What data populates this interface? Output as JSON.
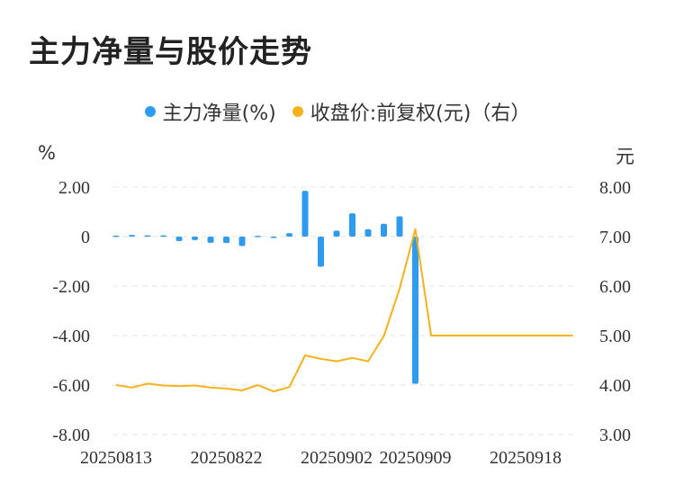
{
  "chart_data": {
    "type": "bar+line",
    "title": "主力净量与股价走势",
    "legend": [
      {
        "label": "主力净量(%)",
        "color": "#2e9bef",
        "placement": "top-center"
      },
      {
        "label": "收盘价:前复权(元)（右）",
        "color": "#f5b21b",
        "placement": "top-center"
      }
    ],
    "left_unit": "%",
    "right_unit": "元",
    "left_ylim": [
      -8,
      2
    ],
    "right_ylim": [
      3,
      8
    ],
    "left_ticks": [
      "2.00",
      "0",
      "-2.00",
      "-4.00",
      "-6.00",
      "-8.00"
    ],
    "right_ticks": [
      "8.00",
      "7.00",
      "6.00",
      "5.00",
      "4.00",
      "3.00"
    ],
    "x_tick_labels": [
      {
        "label": "20250813",
        "index": 0
      },
      {
        "label": "20250822",
        "index": 7
      },
      {
        "label": "20250902",
        "index": 14
      },
      {
        "label": "20250909",
        "index": 19
      },
      {
        "label": "20250918",
        "index": 26
      }
    ],
    "x_count": 30,
    "series": [
      {
        "name": "主力净量(%)",
        "kind": "bar",
        "axis": "left",
        "color": "#2e9bef",
        "values": [
          0.04,
          0.07,
          0.05,
          0.05,
          -0.18,
          -0.14,
          -0.25,
          -0.26,
          -0.38,
          0.03,
          -0.05,
          0.14,
          1.85,
          -1.22,
          0.24,
          0.94,
          0.3,
          0.52,
          0.82,
          -5.95
        ]
      },
      {
        "name": "收盘价:前复权(元)（右）",
        "kind": "line",
        "axis": "right",
        "color": "#f5b21b",
        "values": [
          4.0,
          3.95,
          4.03,
          3.99,
          3.98,
          3.99,
          3.95,
          3.93,
          3.89,
          4.0,
          3.87,
          3.96,
          4.6,
          4.53,
          4.48,
          4.55,
          4.48,
          4.99,
          5.95,
          7.15,
          5.0,
          5.0,
          5.0,
          5.0,
          5.0,
          5.0,
          5.0,
          5.0,
          5.0,
          5.0
        ]
      }
    ],
    "grid": true
  }
}
